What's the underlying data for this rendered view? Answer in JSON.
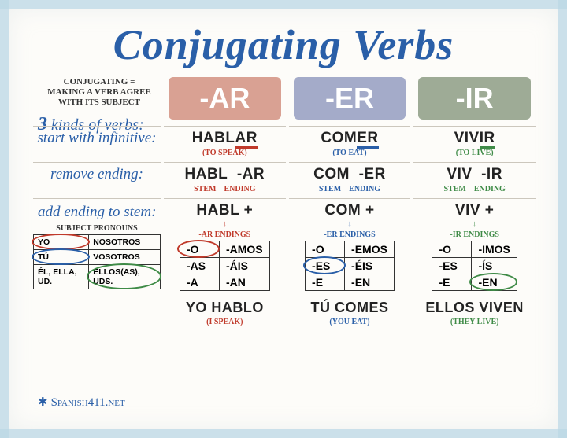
{
  "title": "Conjugating Verbs",
  "subtitle": "Conjugating = making a verb agree with its subject",
  "kinds_prefix": "3",
  "kinds_text": " kinds of verbs:",
  "columns": {
    "ar": {
      "label": "-AR",
      "color": "#d9a193",
      "accent": "#c03a2b"
    },
    "er": {
      "label": "-ER",
      "color": "#a4abc9",
      "accent": "#2a5fa8"
    },
    "ir": {
      "label": "-IR",
      "color": "#9eab96",
      "accent": "#3f8b47"
    }
  },
  "rows": {
    "r1_label": "start with infinitive:",
    "r2_label": "remove ending:",
    "r3_label": "add ending to stem:",
    "pronouns_label": "Subject Pronouns"
  },
  "ar": {
    "inf": "HABLAR",
    "inf_gloss": "(to speak)",
    "inf_end": "AR",
    "stem": "HABL",
    "ending": "-AR",
    "stem_plus": "HABL +",
    "endings_label": "-AR endings",
    "table": [
      [
        "-O",
        "-AMOS"
      ],
      [
        "-AS",
        "-ÁIS"
      ],
      [
        "-A",
        "-AN"
      ]
    ],
    "final": "YO HABLO",
    "final_gloss": "(I speak)"
  },
  "er": {
    "inf": "COMER",
    "inf_gloss": "(to eat)",
    "inf_end": "ER",
    "stem": "COM",
    "ending": "-ER",
    "stem_plus": "COM +",
    "endings_label": "-ER endings",
    "table": [
      [
        "-O",
        "-EMOS"
      ],
      [
        "-ES",
        "-ÉIS"
      ],
      [
        "-E",
        "-EN"
      ]
    ],
    "final": "TÚ COMES",
    "final_gloss": "(you eat)"
  },
  "ir": {
    "inf": "VIVIR",
    "inf_gloss": "(to live)",
    "inf_end": "IR",
    "stem": "VIV",
    "ending": "-IR",
    "stem_plus": "VIV +",
    "endings_label": "-IR endings",
    "table": [
      [
        "-O",
        "-IMOS"
      ],
      [
        "-ES",
        "-ÍS"
      ],
      [
        "-E",
        "-EN"
      ]
    ],
    "final": "ELLOS VIVEN",
    "final_gloss": "(they live)"
  },
  "pronouns": [
    [
      "YO",
      "NOSOTROS"
    ],
    [
      "TÚ",
      "VOSOTROS"
    ],
    [
      "ÉL, ELLA, UD.",
      "ELLOS(AS), UDS."
    ]
  ],
  "stem_label": "stem",
  "ending_label": "ending",
  "footer": "Spanish411.net",
  "star": "✱",
  "arrow_down": "↓",
  "circles": [
    {
      "col": "ar",
      "cell": "0-0",
      "color": "#c03a2b"
    },
    {
      "col": "er",
      "cell": "1-0",
      "color": "#2a5fa8"
    },
    {
      "col": "ir",
      "cell": "2-1",
      "color": "#3f8b47"
    },
    {
      "col": "pron",
      "cell": "0-0",
      "color": "#c03a2b"
    },
    {
      "col": "pron",
      "cell": "1-0",
      "color": "#2a5fa8"
    },
    {
      "col": "pron",
      "cell": "2-1",
      "color": "#3f8b47"
    }
  ]
}
